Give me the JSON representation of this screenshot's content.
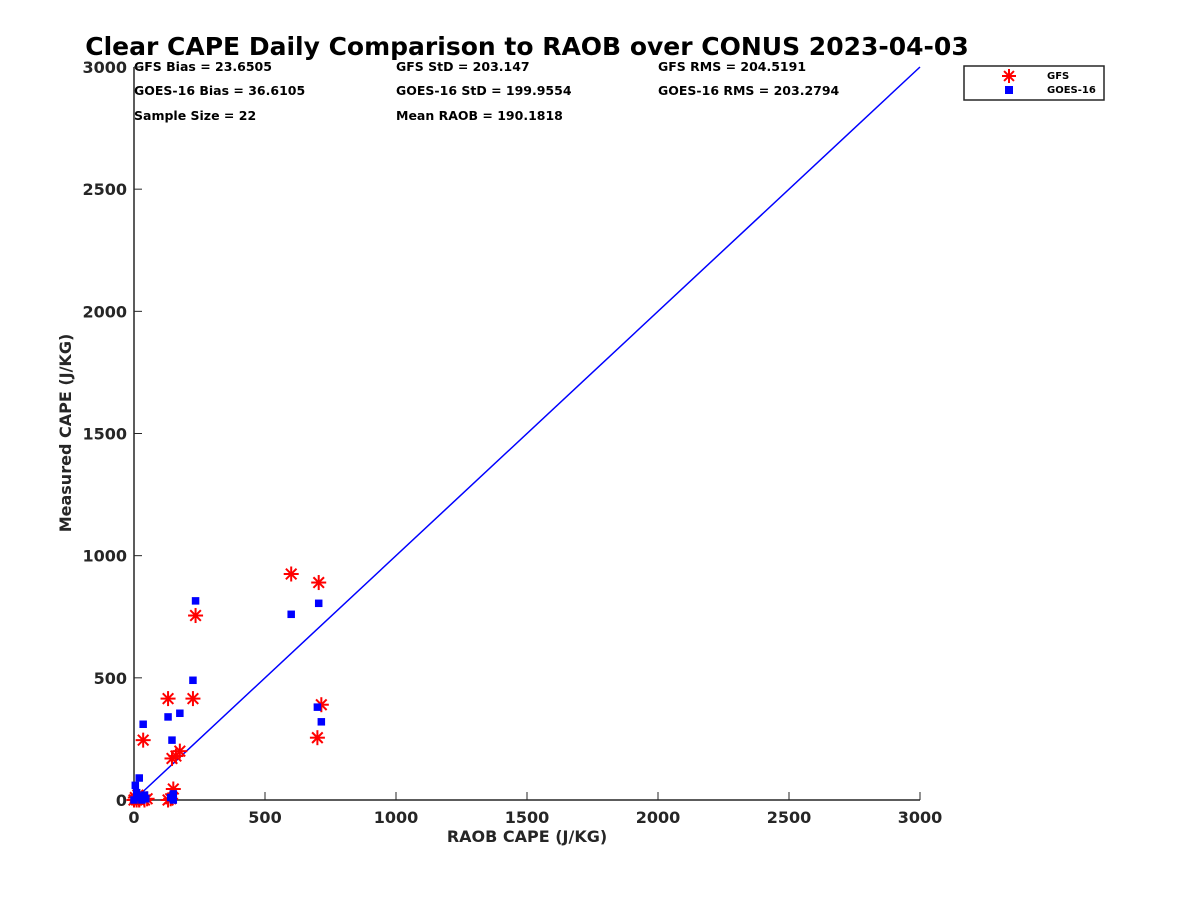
{
  "chart_data": {
    "type": "scatter",
    "title": "Clear CAPE Daily Comparison to RAOB over CONUS 2023-04-03",
    "xlabel": "RAOB CAPE (J/KG)",
    "ylabel": "Measured CAPE (J/KG)",
    "xlim": [
      0,
      3000
    ],
    "ylim": [
      0,
      3000
    ],
    "xticks": [
      "0",
      "500",
      "1000",
      "1500",
      "2000",
      "2500",
      "3000"
    ],
    "yticks": [
      "0",
      "500",
      "1000",
      "1500",
      "2000",
      "2500",
      "3000"
    ],
    "grid": false,
    "legend_position": "top-right, outside plot",
    "reference_line": {
      "x": [
        0,
        3000
      ],
      "y": [
        0,
        3000
      ],
      "color": "#0000ff"
    },
    "stats": [
      "GFS Bias = 23.6505",
      "GFS StD = 203.147",
      "GFS RMS = 204.5191",
      "GOES-16 Bias = 36.6105",
      "GOES-16 StD = 199.9554",
      "GOES-16 RMS = 203.2794",
      "Sample Size = 22",
      "Mean RAOB = 190.1818"
    ],
    "series": [
      {
        "name": "GFS",
        "marker": "asterisk",
        "color": "#ff0000",
        "x": [
          0,
          5,
          10,
          15,
          20,
          40,
          50,
          35,
          130,
          145,
          150,
          160,
          175,
          225,
          235,
          600,
          700,
          705,
          715,
          140,
          130,
          20
        ],
        "y": [
          0,
          10,
          0,
          20,
          0,
          0,
          5,
          245,
          415,
          170,
          45,
          180,
          200,
          415,
          755,
          925,
          255,
          890,
          390,
          5,
          0,
          0
        ]
      },
      {
        "name": "GOES-16",
        "marker": "square",
        "color": "#0000ff",
        "x": [
          0,
          5,
          10,
          15,
          20,
          25,
          30,
          45,
          35,
          130,
          145,
          150,
          175,
          225,
          235,
          600,
          700,
          705,
          715,
          140,
          150,
          40
        ],
        "y": [
          0,
          60,
          30,
          10,
          90,
          15,
          0,
          5,
          310,
          340,
          245,
          25,
          355,
          490,
          815,
          760,
          380,
          805,
          320,
          10,
          0,
          20
        ]
      }
    ]
  }
}
